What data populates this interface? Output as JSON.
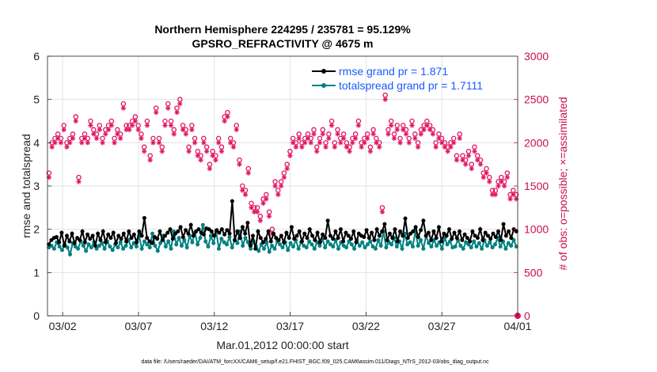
{
  "chart_data": {
    "type": "line",
    "title_line1": "Northern Hemisphere 224295 / 235781 = 95.129%",
    "title_line2": "GPSRO_REFRACTIVITY @ 4675 m",
    "xlabel": "Mar.01,2012 00:00:00 start",
    "ylabel_left": "rmse and totalspread",
    "ylabel_right": "# of obs: o=possible; ×=assimilated",
    "xlim": [
      0,
      31
    ],
    "ylim_left": [
      0,
      6
    ],
    "ylim_right": [
      0,
      3000
    ],
    "x_ticks": [
      {
        "value": 1,
        "label": "03/02"
      },
      {
        "value": 6,
        "label": "03/07"
      },
      {
        "value": 11,
        "label": "03/12"
      },
      {
        "value": 16,
        "label": "03/17"
      },
      {
        "value": 21,
        "label": "03/22"
      },
      {
        "value": 26,
        "label": "03/27"
      },
      {
        "value": 31,
        "label": "04/01"
      }
    ],
    "y_ticks_left": [
      "0",
      "1",
      "2",
      "3",
      "4",
      "5",
      "6"
    ],
    "y_ticks_right": [
      "0",
      "500",
      "1000",
      "1500",
      "2000",
      "2500",
      "3000"
    ],
    "grid": true,
    "legend_position": "top-right",
    "colors": {
      "rmse": "#000000",
      "spread": "#008080",
      "obs": "#e0115f",
      "legend_text": "#1a5aff",
      "right_axis": "#c8104f"
    },
    "series": [
      {
        "name": "rmse grand pr = 1.871",
        "axis": "left",
        "values": [
          1.65,
          1.75,
          1.8,
          1.82,
          1.7,
          1.92,
          1.62,
          1.85,
          1.72,
          1.9,
          1.68,
          1.8,
          1.75,
          1.95,
          1.7,
          1.88,
          1.78,
          1.85,
          1.62,
          1.9,
          1.75,
          1.95,
          1.7,
          1.88,
          1.8,
          1.92,
          1.68,
          1.85,
          1.78,
          1.9,
          1.72,
          1.95,
          1.8,
          1.88,
          1.7,
          1.95,
          1.85,
          2.26,
          1.8,
          1.72,
          1.68,
          1.82,
          1.78,
          1.95,
          1.75,
          1.85,
          1.92,
          2.0,
          1.78,
          1.9,
          1.95,
          2.05,
          1.82,
          1.98,
          1.9,
          2.1,
          1.85,
          1.95,
          2.0,
          1.92,
          1.88,
          2.02,
          2.0,
          1.95,
          1.85,
          1.98,
          1.92,
          2.0,
          1.88,
          1.98,
          1.9,
          2.65,
          1.75,
          1.95,
          1.8,
          2.05,
          1.9,
          2.15,
          1.62,
          1.85,
          1.55,
          1.95,
          1.8,
          1.7,
          1.78,
          1.95,
          1.72,
          1.9,
          1.8,
          1.75,
          1.85,
          1.7,
          1.92,
          1.8,
          2.05,
          1.78,
          1.85,
          1.95,
          1.72,
          1.9,
          1.8,
          2.0,
          1.85,
          1.75,
          1.92,
          1.7,
          1.88,
          1.8,
          2.2,
          1.85,
          1.78,
          1.95,
          1.8,
          2.0,
          1.72,
          1.92,
          1.85,
          1.78,
          1.95,
          1.7,
          1.9,
          1.85,
          1.82,
          1.98,
          1.8,
          1.92,
          1.75,
          2.0,
          1.85,
          1.95,
          2.12,
          1.75,
          1.9,
          1.8,
          2.0,
          1.72,
          1.95,
          1.85,
          2.25,
          1.8,
          1.9,
          1.95,
          2.05,
          1.82,
          1.98,
          2.2,
          1.85,
          1.92,
          1.75,
          1.95,
          1.8,
          2.05,
          1.72,
          1.9,
          1.85,
          2.0,
          1.78,
          1.92,
          1.8,
          1.95,
          1.75,
          1.88,
          1.8,
          1.72,
          1.95,
          1.85,
          1.8,
          2.0,
          1.75,
          1.92,
          1.85,
          1.78,
          1.9,
          1.82,
          1.95,
          1.75,
          2.12,
          1.85,
          1.95,
          1.8,
          2.0,
          1.95
        ]
      },
      {
        "name": "totalspread grand pr = 1.7111",
        "axis": "left",
        "values": [
          1.58,
          1.62,
          1.55,
          1.7,
          1.6,
          1.52,
          1.65,
          1.58,
          1.42,
          1.68,
          1.6,
          1.55,
          1.72,
          1.62,
          1.5,
          1.65,
          1.58,
          1.7,
          1.55,
          1.62,
          1.68,
          1.55,
          1.72,
          1.6,
          1.52,
          1.65,
          1.58,
          1.7,
          1.55,
          1.62,
          1.75,
          1.58,
          1.68,
          1.6,
          1.85,
          1.55,
          1.72,
          1.65,
          1.58,
          1.9,
          1.62,
          1.5,
          1.68,
          1.85,
          1.6,
          1.72,
          1.55,
          1.95,
          1.65,
          1.8,
          1.62,
          1.75,
          1.58,
          1.85,
          1.7,
          1.92,
          1.65,
          1.8,
          2.1,
          1.72,
          1.6,
          1.85,
          1.68,
          1.95,
          1.55,
          1.78,
          1.7,
          1.65,
          1.82,
          1.58,
          1.75,
          1.68,
          1.95,
          1.62,
          1.8,
          1.7,
          1.55,
          1.72,
          1.6,
          1.5,
          1.65,
          1.55,
          1.7,
          1.48,
          1.62,
          1.55,
          1.72,
          1.65,
          1.58,
          1.7,
          1.52,
          1.68,
          1.6,
          1.75,
          1.55,
          1.7,
          1.62,
          1.58,
          1.72,
          1.65,
          1.55,
          1.7,
          1.62,
          1.78,
          1.58,
          1.72,
          1.65,
          1.6,
          1.75,
          1.55,
          1.7,
          1.62,
          1.58,
          1.72,
          1.65,
          1.55,
          1.75,
          1.62,
          1.7,
          1.58,
          1.65,
          1.72,
          1.6,
          1.55,
          1.75,
          1.62,
          1.95,
          1.58,
          1.7,
          1.65,
          1.8,
          1.6,
          1.72,
          1.55,
          1.9,
          1.65,
          1.7,
          1.6,
          1.95,
          1.62,
          1.75,
          1.55,
          1.85,
          1.68,
          1.6,
          1.75,
          1.62,
          1.7,
          1.55,
          1.8,
          1.65,
          1.72,
          1.58,
          1.6,
          1.75,
          1.62,
          1.55,
          1.7,
          1.65,
          1.58,
          1.72,
          1.6,
          1.68,
          1.55,
          1.75,
          1.62,
          1.7,
          1.58,
          1.65,
          1.8,
          1.6,
          1.72,
          1.55,
          1.68,
          1.62,
          1.75,
          1.6
        ]
      },
      {
        "name": "possible",
        "axis": "right",
        "values": [
          1650,
          2000,
          2050,
          2100,
          2050,
          2200,
          2000,
          2050,
          2100,
          2300,
          1600,
          2050,
          2100,
          2050,
          2250,
          2150,
          2100,
          2200,
          2050,
          2150,
          2200,
          2250,
          2050,
          2150,
          2100,
          2450,
          2200,
          2200,
          2250,
          2300,
          2200,
          2100,
          1950,
          2250,
          1850,
          2050,
          2400,
          2050,
          1950,
          2250,
          2450,
          2250,
          2150,
          2400,
          2500,
          2200,
          2150,
          1950,
          2200,
          2050,
          1900,
          1850,
          2050,
          1950,
          1750,
          1900,
          1850,
          2050,
          1950,
          2300,
          2350,
          2050,
          2000,
          2200,
          1800,
          1500,
          1450,
          1700,
          1300,
          1250,
          1250,
          1150,
          1350,
          1400,
          1200,
          1000,
          1550,
          1450,
          1550,
          1650,
          1750,
          1900,
          2050,
          2000,
          2100,
          2000,
          2050,
          2100,
          2050,
          2150,
          1950,
          2050,
          2150,
          2000,
          2100,
          2250,
          2000,
          2150,
          2050,
          2100,
          2000,
          1950,
          2050,
          2100,
          2250,
          2000,
          2050,
          2100,
          1950,
          2150,
          2050,
          2000,
          1250,
          2550,
          2150,
          2250,
          2100,
          2200,
          2050,
          2200,
          2150,
          2050,
          2250,
          2100,
          2000,
          2150,
          2200,
          2250,
          2200,
          2150,
          2000,
          2100,
          2050,
          2000,
          1950,
          2000,
          2050,
          1850,
          2100,
          1850,
          1800,
          1900,
          1750,
          1950,
          1850,
          1800,
          1650,
          1700,
          1600,
          1450,
          1450,
          1550,
          1600,
          1550,
          1650,
          1400,
          1450,
          1400
        ]
      },
      {
        "name": "assimilated",
        "axis": "right",
        "values": [
          1600,
          1950,
          2000,
          2050,
          2000,
          2150,
          1950,
          2000,
          2050,
          2250,
          1550,
          2000,
          2050,
          2000,
          2200,
          2100,
          2050,
          2150,
          2000,
          2100,
          2150,
          2200,
          2000,
          2100,
          2050,
          2400,
          2150,
          2150,
          2200,
          2250,
          2150,
          2050,
          1900,
          2200,
          1800,
          2000,
          2350,
          2000,
          1900,
          2200,
          2400,
          2200,
          2100,
          2350,
          2450,
          2150,
          2100,
          1900,
          2150,
          2000,
          1850,
          1800,
          2000,
          1900,
          1700,
          1850,
          1800,
          2000,
          1900,
          2250,
          2300,
          2000,
          1950,
          2150,
          1750,
          1450,
          1400,
          1650,
          1250,
          1200,
          1200,
          1100,
          1300,
          1350,
          1150,
          950,
          1500,
          1400,
          1500,
          1600,
          1700,
          1850,
          2000,
          1950,
          2050,
          1950,
          2000,
          2050,
          2000,
          2100,
          1900,
          2000,
          2100,
          1950,
          2050,
          2200,
          1950,
          2100,
          2000,
          2050,
          1950,
          1900,
          2000,
          2050,
          2200,
          1950,
          2000,
          2050,
          1900,
          2100,
          2000,
          1950,
          1200,
          2500,
          2100,
          2200,
          2050,
          2150,
          2000,
          2150,
          2100,
          2000,
          2200,
          2050,
          1950,
          2100,
          2150,
          2200,
          2150,
          2100,
          1950,
          2050,
          2000,
          1950,
          1900,
          1950,
          2000,
          1800,
          2050,
          1800,
          1750,
          1850,
          1700,
          1900,
          1800,
          1750,
          1600,
          1650,
          1550,
          1400,
          1400,
          1500,
          1550,
          1500,
          1600,
          1350,
          1400,
          1350
        ]
      }
    ],
    "annotation_last_point": {
      "x": 31,
      "value": 0
    }
  },
  "footnote": "data file: /Users/raeder/DAI/ATM_forcXX/CAM6_setup/f.e21.FHIST_BGC.f09_025.CAM6assim.011/Diags_NTrS_2012-03/obs_diag_output.nc"
}
